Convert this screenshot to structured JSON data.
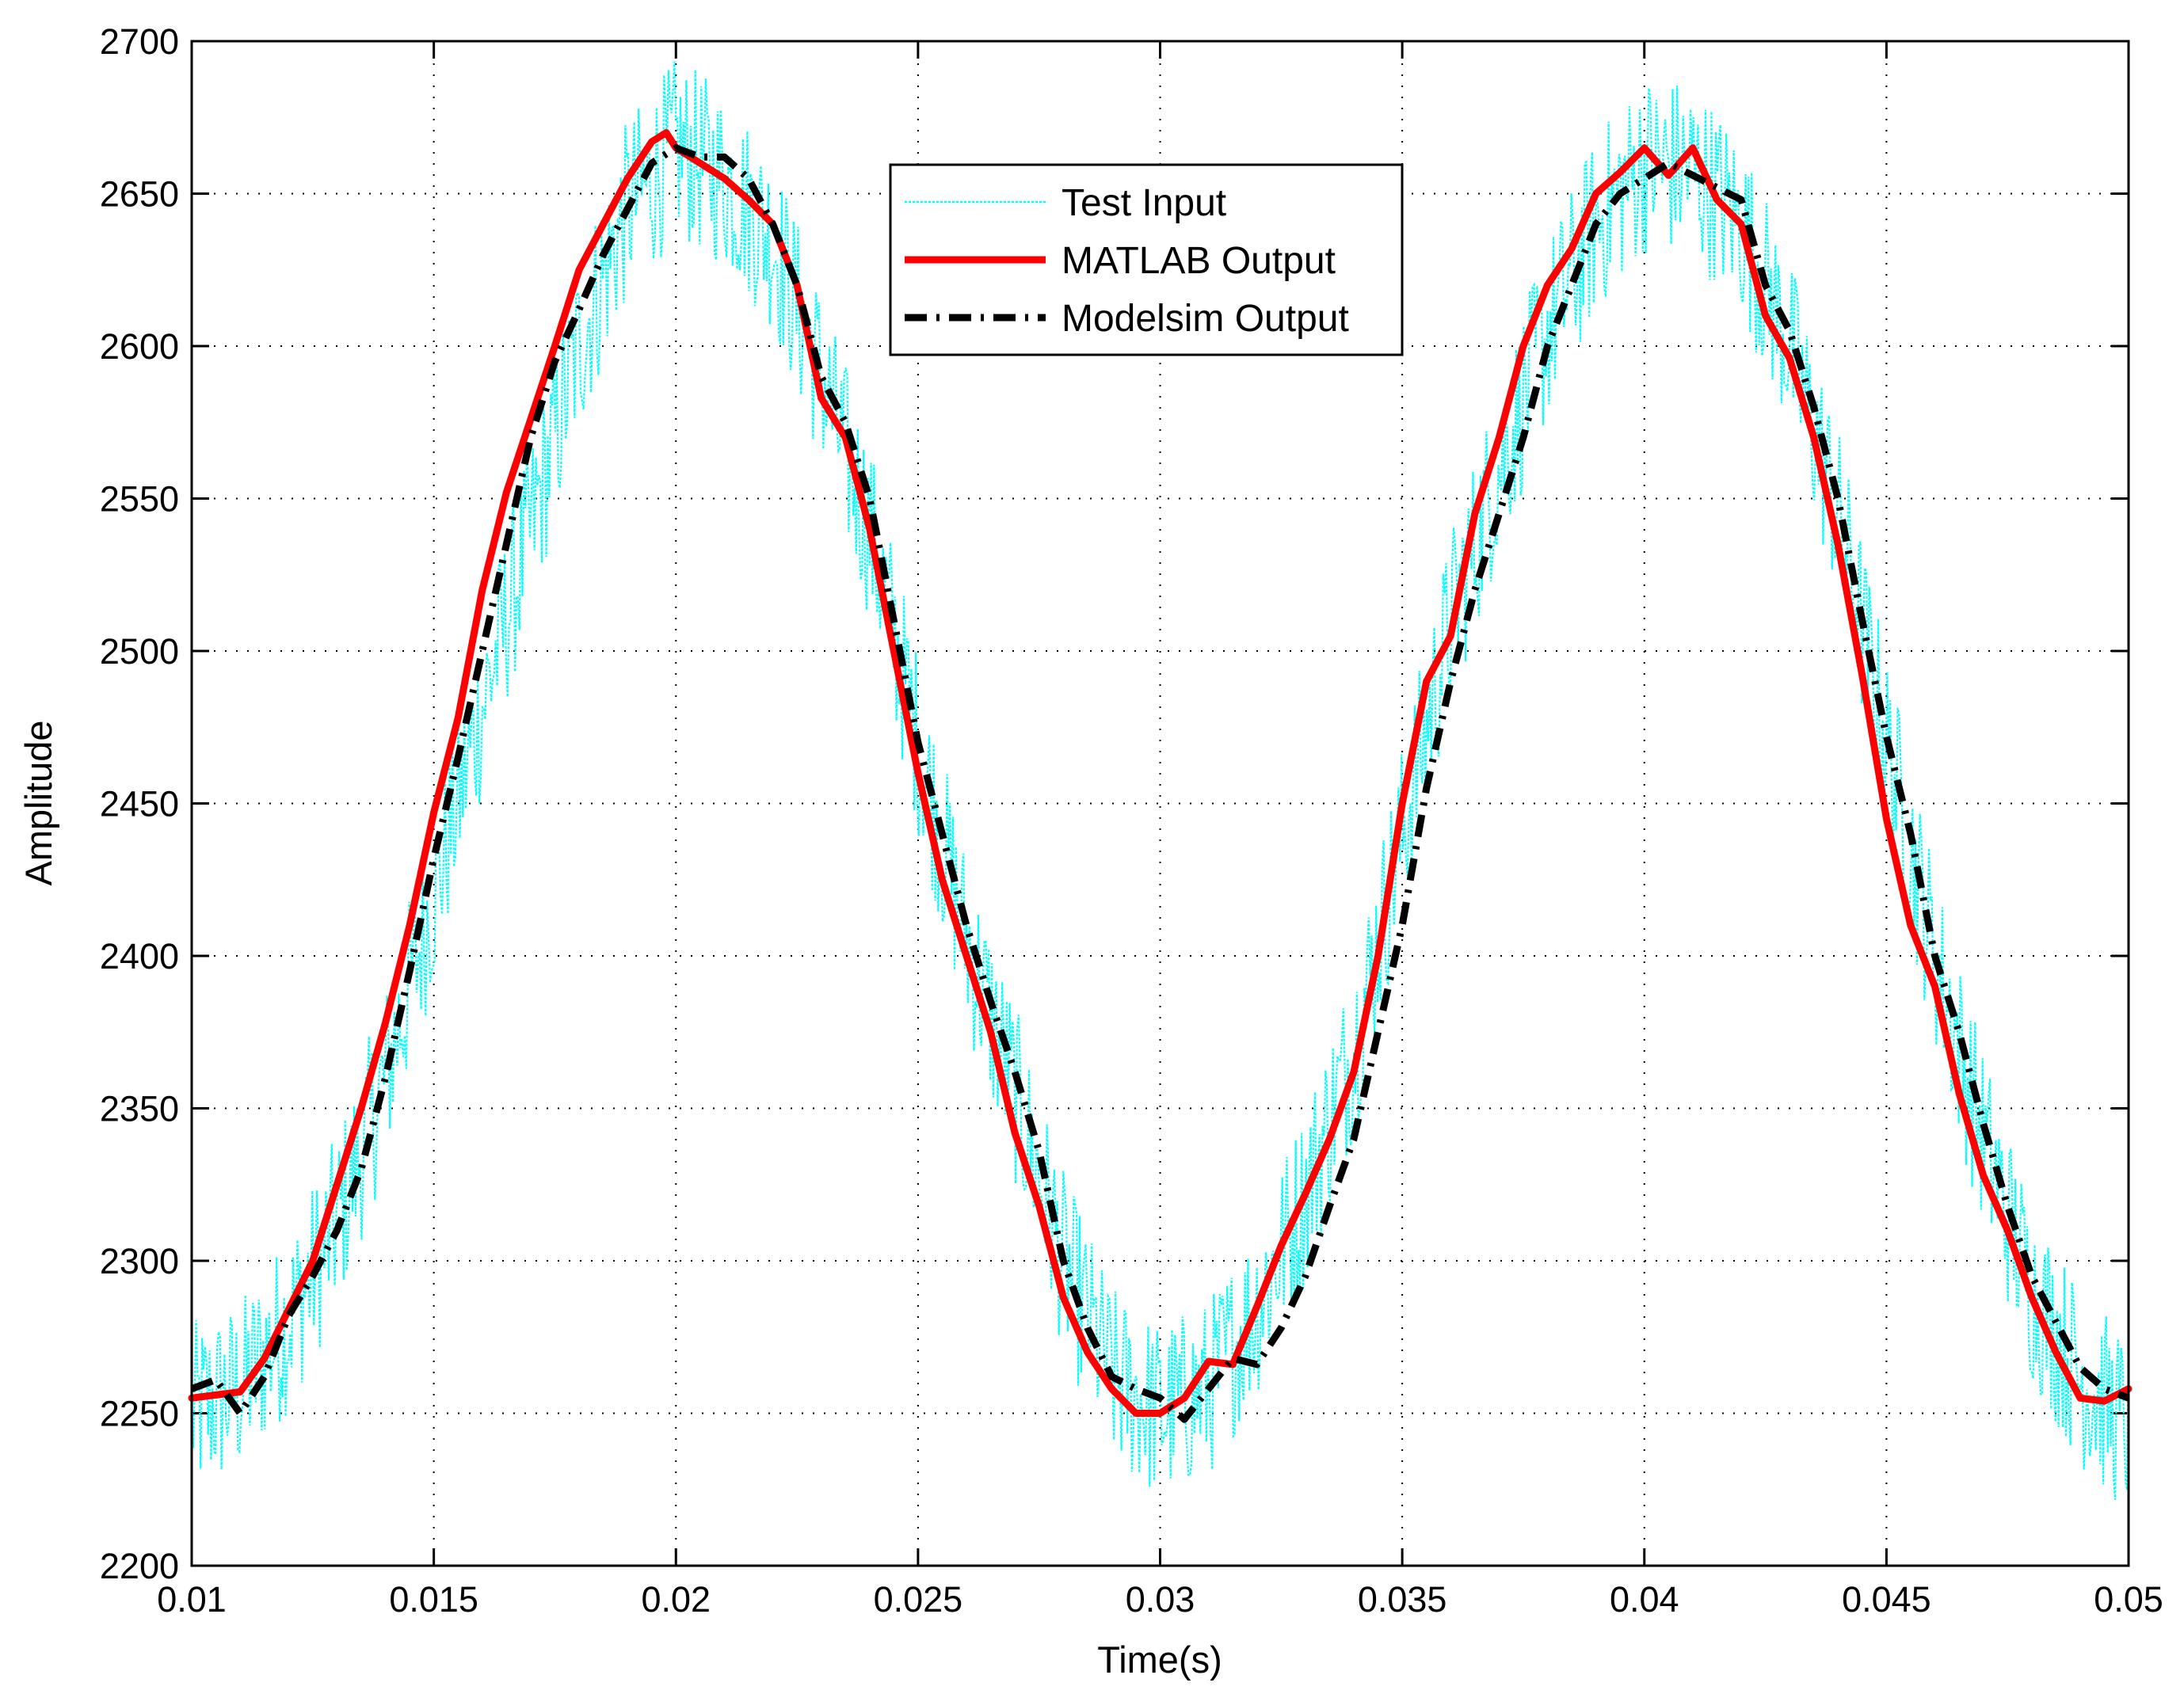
{
  "chart_data": {
    "type": "line",
    "title": "",
    "xlabel": "Time(s)",
    "ylabel": "Amplitude",
    "xlim": [
      0.01,
      0.05
    ],
    "ylim": [
      2200,
      2700
    ],
    "xticks": [
      0.01,
      0.015,
      0.02,
      0.025,
      0.03,
      0.035,
      0.04,
      0.045,
      0.05
    ],
    "xtick_labels": [
      "0.01",
      "0.015",
      "0.02",
      "0.025",
      "0.03",
      "0.035",
      "0.04",
      "0.045",
      "0.05"
    ],
    "yticks": [
      2200,
      2250,
      2300,
      2350,
      2400,
      2450,
      2500,
      2550,
      2600,
      2650,
      2700
    ],
    "ytick_labels": [
      "2200",
      "2250",
      "2300",
      "2350",
      "2400",
      "2450",
      "2500",
      "2550",
      "2600",
      "2650",
      "2700"
    ],
    "grid": true,
    "legend_position": "top-center",
    "series": [
      {
        "name": "Test Input",
        "color": "#00FFFF",
        "style": "dotted-noisy",
        "noise_amplitude": 30,
        "x": [
          0.01,
          0.011,
          0.012,
          0.013,
          0.014,
          0.015,
          0.016,
          0.017,
          0.018,
          0.019,
          0.02,
          0.021,
          0.022,
          0.023,
          0.024,
          0.025,
          0.026,
          0.027,
          0.028,
          0.029,
          0.03,
          0.031,
          0.032,
          0.033,
          0.034,
          0.035,
          0.036,
          0.037,
          0.038,
          0.039,
          0.04,
          0.041,
          0.042,
          0.043,
          0.044,
          0.045,
          0.046,
          0.047,
          0.048,
          0.049,
          0.05
        ],
        "y": [
          2250,
          2258,
          2280,
          2312,
          2360,
          2420,
          2482,
          2540,
          2600,
          2645,
          2665,
          2655,
          2635,
          2590,
          2540,
          2470,
          2405,
          2355,
          2300,
          2262,
          2250,
          2258,
          2285,
          2322,
          2370,
          2440,
          2510,
          2560,
          2605,
          2640,
          2660,
          2658,
          2640,
          2600,
          2545,
          2470,
          2400,
          2340,
          2290,
          2262,
          2245
        ]
      },
      {
        "name": "MATLAB Output",
        "color": "#FF0000",
        "style": "solid",
        "x": [
          0.01,
          0.0105,
          0.011,
          0.0115,
          0.012,
          0.0125,
          0.013,
          0.0135,
          0.014,
          0.0145,
          0.015,
          0.0155,
          0.016,
          0.0165,
          0.017,
          0.0175,
          0.018,
          0.0185,
          0.019,
          0.0195,
          0.0198,
          0.02,
          0.0205,
          0.021,
          0.0215,
          0.022,
          0.0225,
          0.023,
          0.0235,
          0.024,
          0.0245,
          0.025,
          0.0255,
          0.026,
          0.0265,
          0.027,
          0.0275,
          0.028,
          0.0285,
          0.029,
          0.0295,
          0.03,
          0.0305,
          0.031,
          0.0315,
          0.032,
          0.0325,
          0.033,
          0.0335,
          0.034,
          0.0345,
          0.035,
          0.0355,
          0.036,
          0.0365,
          0.037,
          0.0375,
          0.038,
          0.0385,
          0.039,
          0.0395,
          0.04,
          0.0405,
          0.041,
          0.0415,
          0.042,
          0.0425,
          0.043,
          0.0435,
          0.044,
          0.0445,
          0.045,
          0.0455,
          0.046,
          0.0465,
          0.047,
          0.0475,
          0.048,
          0.0485,
          0.049,
          0.0495,
          0.05
        ],
        "y": [
          2255,
          2256,
          2257,
          2268,
          2284,
          2300,
          2325,
          2350,
          2378,
          2410,
          2447,
          2478,
          2520,
          2552,
          2576,
          2600,
          2625,
          2640,
          2655,
          2667,
          2670,
          2665,
          2660,
          2655,
          2648,
          2640,
          2620,
          2583,
          2570,
          2540,
          2500,
          2460,
          2425,
          2400,
          2375,
          2342,
          2318,
          2288,
          2270,
          2258,
          2250,
          2250,
          2255,
          2267,
          2266,
          2285,
          2305,
          2322,
          2340,
          2362,
          2400,
          2450,
          2490,
          2505,
          2545,
          2570,
          2600,
          2620,
          2632,
          2650,
          2657,
          2665,
          2656,
          2665,
          2648,
          2640,
          2610,
          2596,
          2570,
          2535,
          2492,
          2445,
          2410,
          2390,
          2355,
          2328,
          2310,
          2288,
          2270,
          2255,
          2254,
          2258
        ]
      },
      {
        "name": "Modelsim Output",
        "color": "#000000",
        "style": "dash-dot",
        "x": [
          0.01,
          0.0105,
          0.011,
          0.0115,
          0.012,
          0.0125,
          0.013,
          0.0135,
          0.014,
          0.0145,
          0.015,
          0.0155,
          0.016,
          0.0165,
          0.017,
          0.0175,
          0.018,
          0.0185,
          0.019,
          0.0195,
          0.02,
          0.0205,
          0.021,
          0.0215,
          0.022,
          0.0225,
          0.023,
          0.0235,
          0.024,
          0.0245,
          0.025,
          0.0255,
          0.026,
          0.0265,
          0.027,
          0.0275,
          0.028,
          0.0285,
          0.029,
          0.0295,
          0.03,
          0.0305,
          0.031,
          0.0315,
          0.032,
          0.0325,
          0.033,
          0.0335,
          0.034,
          0.0345,
          0.035,
          0.0355,
          0.036,
          0.0365,
          0.037,
          0.0375,
          0.038,
          0.0385,
          0.039,
          0.0395,
          0.04,
          0.0405,
          0.041,
          0.0415,
          0.042,
          0.0425,
          0.043,
          0.0435,
          0.044,
          0.0445,
          0.045,
          0.0455,
          0.046,
          0.0465,
          0.047,
          0.0475,
          0.048,
          0.0485,
          0.049,
          0.0495,
          0.05
        ],
        "y": [
          2258,
          2261,
          2250,
          2262,
          2282,
          2295,
          2310,
          2330,
          2360,
          2395,
          2432,
          2465,
          2500,
          2535,
          2570,
          2595,
          2612,
          2630,
          2645,
          2660,
          2665,
          2662,
          2662,
          2655,
          2640,
          2620,
          2590,
          2575,
          2550,
          2510,
          2470,
          2440,
          2410,
          2385,
          2362,
          2336,
          2300,
          2278,
          2262,
          2258,
          2255,
          2248,
          2258,
          2268,
          2266,
          2278,
          2295,
          2318,
          2340,
          2375,
          2410,
          2455,
          2490,
          2520,
          2545,
          2570,
          2600,
          2620,
          2640,
          2650,
          2655,
          2660,
          2656,
          2652,
          2648,
          2620,
          2605,
          2580,
          2550,
          2510,
          2472,
          2440,
          2400,
          2375,
          2345,
          2318,
          2295,
          2280,
          2265,
          2258,
          2255
        ]
      }
    ]
  }
}
